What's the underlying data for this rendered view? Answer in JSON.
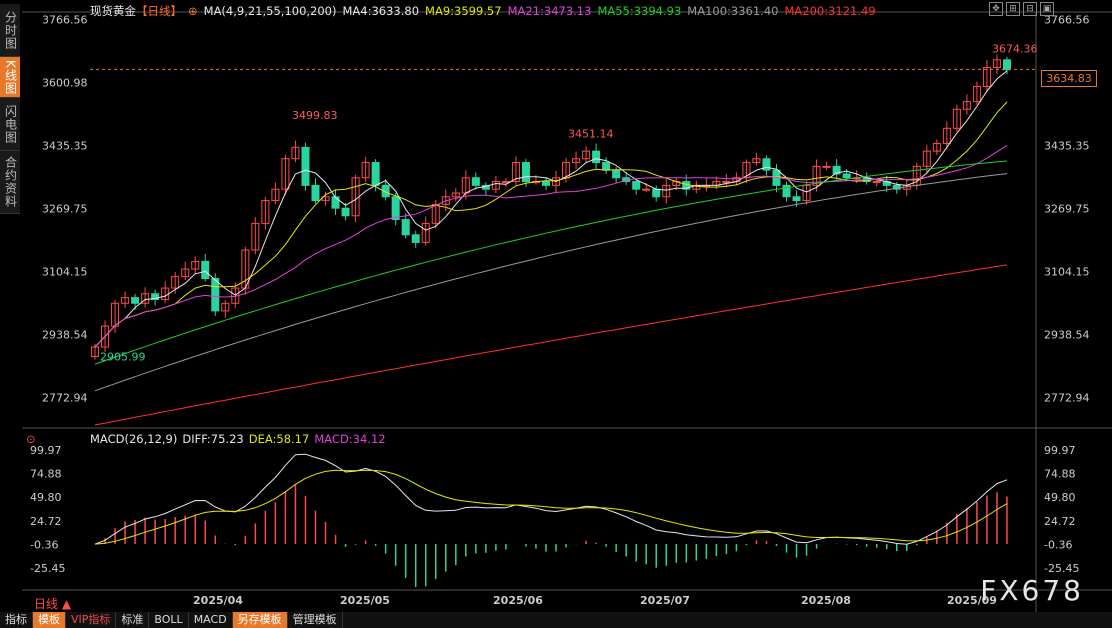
{
  "header": {
    "title": "现货黄金",
    "period_tag": "【日线】",
    "ma_params": "MA(4,9,21,55,100,200)",
    "ma_values": [
      {
        "label": "MA4:3633.80",
        "color": "#e8e8e8"
      },
      {
        "label": "MA9:3599.57",
        "color": "#e6e600"
      },
      {
        "label": "MA21:3473.13",
        "color": "#e040e0"
      },
      {
        "label": "MA55:3394.93",
        "color": "#20d020"
      },
      {
        "label": "MA100:3361.40",
        "color": "#9a9a9a"
      },
      {
        "label": "MA200:3121.49",
        "color": "#ff3030"
      }
    ]
  },
  "sidebar": {
    "tabs": [
      {
        "label": "分时图"
      },
      {
        "label": "K线图"
      },
      {
        "label": "闪电图"
      },
      {
        "label": "合约资料"
      }
    ]
  },
  "price_axis": {
    "ticks": [
      "3766.56",
      "3600.98",
      "3435.35",
      "3269.75",
      "3104.15",
      "2938.54",
      "2772.94"
    ],
    "current_price": "3634.83"
  },
  "macd": {
    "label": "MACD(26,12,9)",
    "diff": "DIFF:75.23",
    "dea": "DEA:58.17",
    "macd": "MACD:34.12",
    "ticks": [
      "99.97",
      "74.88",
      "49.80",
      "24.72",
      "-0.36",
      "-25.45"
    ]
  },
  "annotations": {
    "high1": "3499.83",
    "high2": "3451.14",
    "high3": "3674.36",
    "low1": "2905.99"
  },
  "x_axis": {
    "labels": [
      "2025/04",
      "2025/05",
      "2025/06",
      "2025/07",
      "2025/08",
      "2025/09"
    ]
  },
  "footer": {
    "period": "日线 ▲",
    "buttons": [
      "指标",
      "模板",
      "VIP指标",
      "标准",
      "BOLL",
      "MACD",
      "另存模板",
      "管理模板"
    ],
    "watermark": "FX678"
  },
  "colors": {
    "up": "#ff4a4a",
    "down": "#2ad4a0",
    "accent": "#e8792a"
  },
  "chart_data": {
    "type": "candlestick",
    "ylim": [
      2700,
      3770
    ],
    "ohlc_closes": [
      2905,
      2960,
      3020,
      3035,
      3020,
      3045,
      3030,
      3060,
      3090,
      3110,
      3130,
      3085,
      3000,
      3020,
      3060,
      3160,
      3230,
      3290,
      3320,
      3400,
      3430,
      3330,
      3290,
      3300,
      3270,
      3250,
      3350,
      3390,
      3330,
      3300,
      3240,
      3200,
      3180,
      3230,
      3280,
      3300,
      3310,
      3350,
      3330,
      3320,
      3340,
      3340,
      3390,
      3340,
      3340,
      3330,
      3350,
      3390,
      3400,
      3420,
      3390,
      3370,
      3350,
      3340,
      3320,
      3320,
      3300,
      3330,
      3340,
      3320,
      3330,
      3330,
      3340,
      3340,
      3350,
      3390,
      3400,
      3370,
      3330,
      3300,
      3290,
      3330,
      3380,
      3380,
      3360,
      3350,
      3350,
      3340,
      3340,
      3330,
      3320,
      3330,
      3380,
      3420,
      3440,
      3480,
      3530,
      3550,
      3590,
      3640,
      3660,
      3634
    ]
  }
}
